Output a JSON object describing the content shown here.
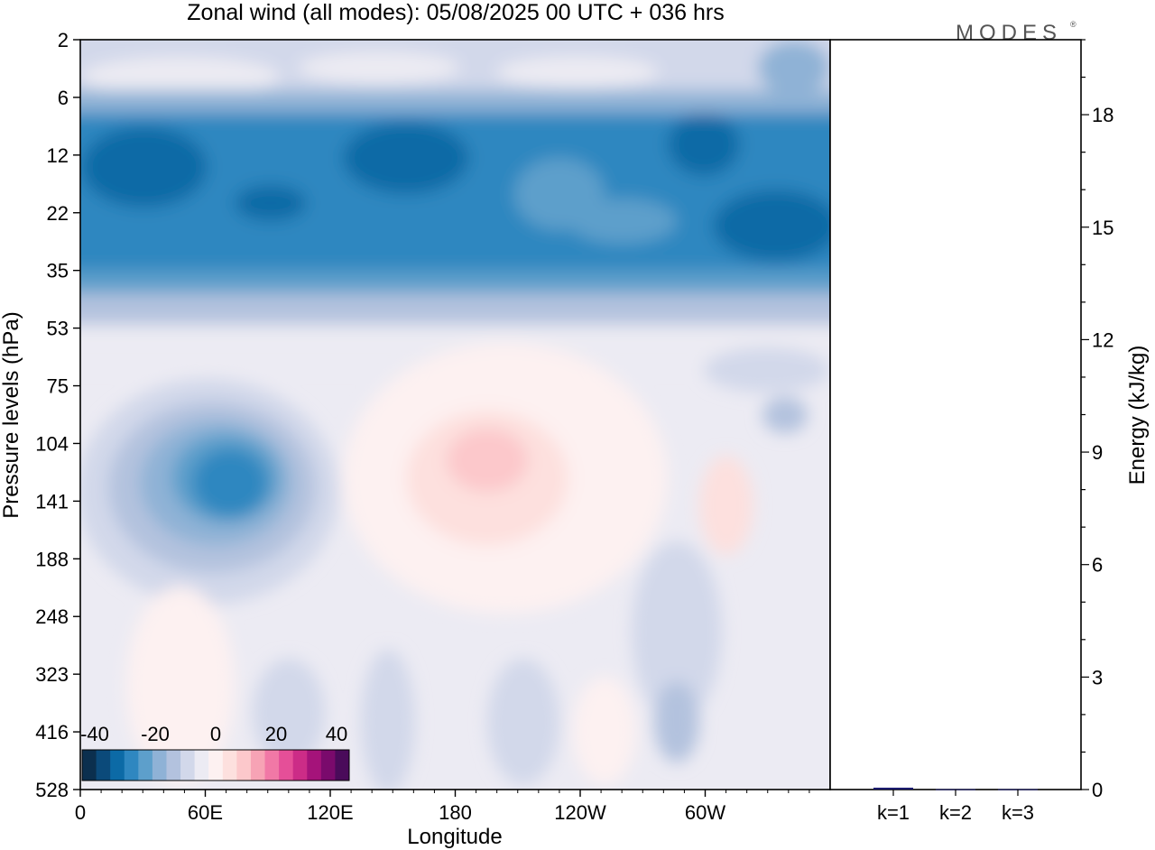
{
  "title": "Zonal wind (all modes):  05/08/2025  00 UTC  + 036 hrs",
  "logo": "MODES",
  "chart_data": [
    {
      "type": "heatmap",
      "title": "Zonal wind (all modes):  05/08/2025  00 UTC  + 036 hrs",
      "xlabel": "Longitude",
      "ylabel": "Pressure levels (hPa)",
      "x_ticks": [
        "0",
        "60E",
        "120E",
        "180",
        "120W",
        "60W"
      ],
      "y_ticks": [
        "2",
        "6",
        "12",
        "22",
        "35",
        "53",
        "75",
        "104",
        "141",
        "188",
        "248",
        "323",
        "416",
        "528"
      ],
      "colorbar": {
        "labels": [
          "-40",
          "-20",
          "0",
          "20",
          "40"
        ],
        "colors": [
          "#0b2f4e",
          "#0b4a7a",
          "#0c6aa6",
          "#2f87c0",
          "#5d9fcb",
          "#8fb2d6",
          "#b3c2de",
          "#d2d8ea",
          "#ecebf3",
          "#fdf1f1",
          "#fde0de",
          "#fcc8cb",
          "#f7a3b5",
          "#f178a6",
          "#e54f98",
          "#cc2c87",
          "#a5137a",
          "#7a0a6c",
          "#4a0b5a"
        ]
      },
      "features": [
        {
          "name": "stratospheric easterly jet",
          "lon_range": [
            0,
            360
          ],
          "p_range": [
            10,
            40
          ],
          "value": -22
        },
        {
          "name": "easterly maximum near 80E",
          "lon": 80,
          "p": 130,
          "value": -22
        },
        {
          "name": "weak westerly near 175W",
          "lon": 185,
          "p": 110,
          "value": 8
        }
      ]
    },
    {
      "type": "bar",
      "categories": [
        "k=1",
        "k=2",
        "k=3"
      ],
      "values": [
        0.05,
        0.01,
        0.01
      ],
      "ylabel": "Energy (kJ/kg)",
      "ylim": [
        0,
        20
      ],
      "y_ticks": [
        "0",
        "3",
        "6",
        "9",
        "12",
        "15",
        "18"
      ],
      "bar_color": "#1a1a6e"
    }
  ]
}
